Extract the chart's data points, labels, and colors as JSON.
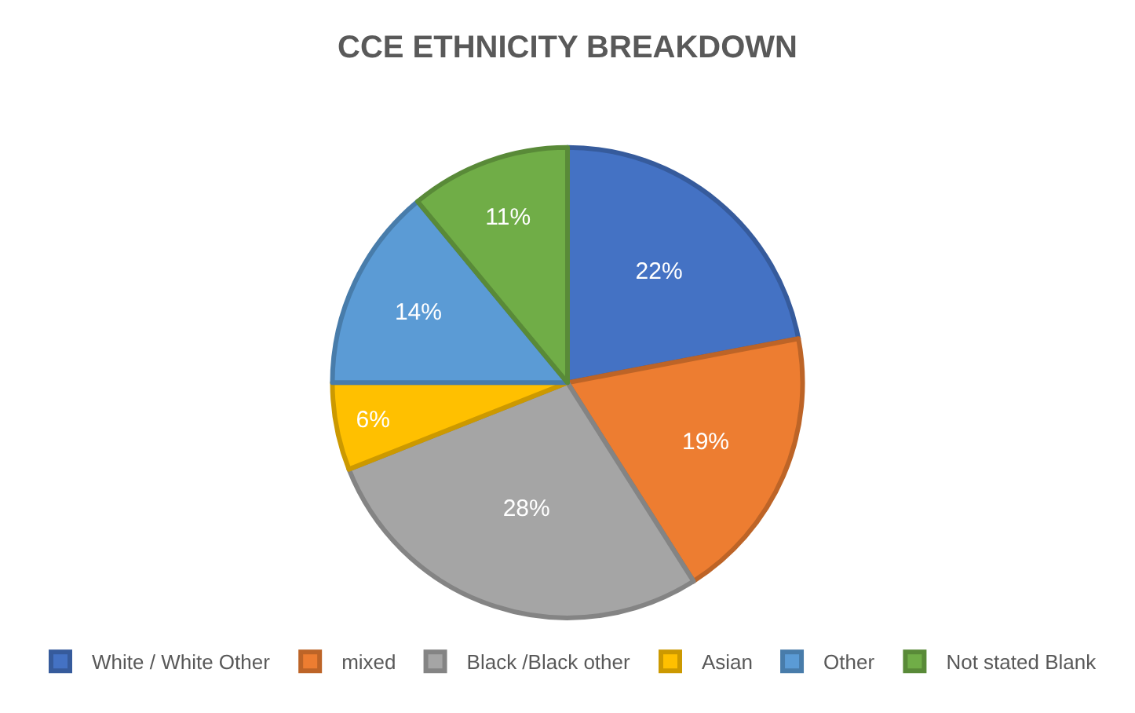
{
  "chart_data": {
    "type": "pie",
    "title": "CCE ETHNICITY BREAKDOWN",
    "categories": [
      "White / White Other",
      "mixed",
      "Black /Black other",
      "Asian",
      "Other",
      "Not stated Blank"
    ],
    "values": [
      22,
      19,
      28,
      6,
      14,
      11
    ],
    "colors": [
      "#4472c4",
      "#ed7d31",
      "#a5a5a5",
      "#ffc000",
      "#5b9bd5",
      "#70ad47"
    ],
    "value_labels": [
      "22%",
      "19%",
      "28%",
      "6%",
      "14%",
      "11%"
    ],
    "legend": "bottom"
  }
}
